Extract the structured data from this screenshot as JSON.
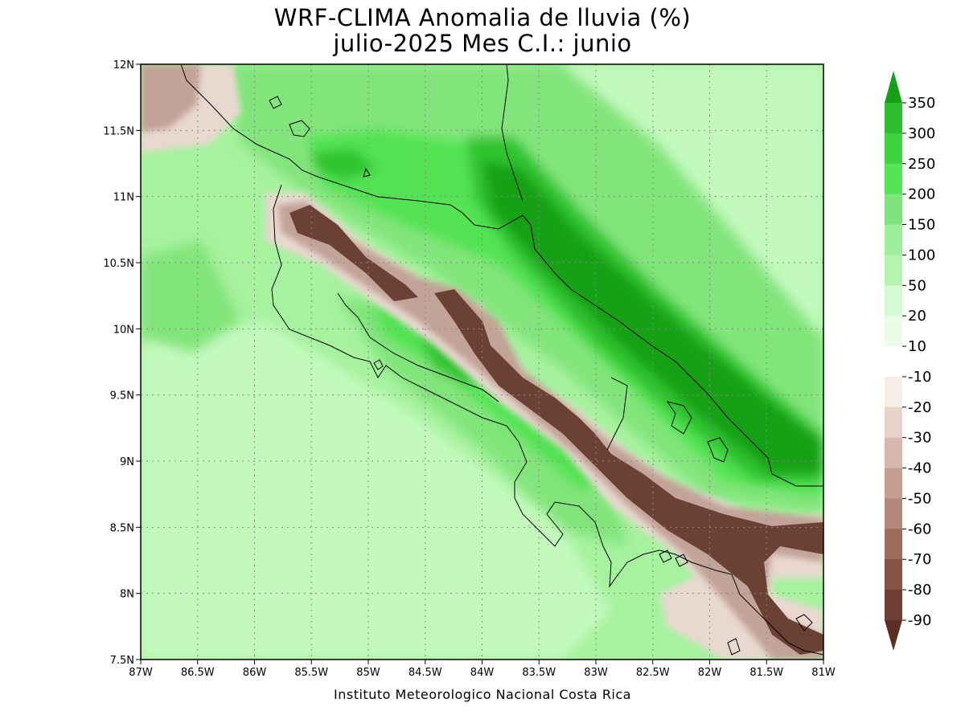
{
  "title": {
    "line1": "WRF-CLIMA Anomalia de lluvia (%)",
    "line2": "julio-2025 Mes C.I.: junio"
  },
  "credit": "Instituto Meteorologico Nacional Costa Rica",
  "map": {
    "lon_range": [
      -87,
      -81
    ],
    "lat_range": [
      7.5,
      12
    ],
    "lon_ticks": [
      {
        "value": -87,
        "label": "87W"
      },
      {
        "value": -86.5,
        "label": "86.5W"
      },
      {
        "value": -86,
        "label": "86W"
      },
      {
        "value": -85.5,
        "label": "85.5W"
      },
      {
        "value": -85,
        "label": "85W"
      },
      {
        "value": -84.5,
        "label": "84.5W"
      },
      {
        "value": -84,
        "label": "84W"
      },
      {
        "value": -83.5,
        "label": "83.5W"
      },
      {
        "value": -83,
        "label": "83W"
      },
      {
        "value": -82.5,
        "label": "82.5W"
      },
      {
        "value": -82,
        "label": "82W"
      },
      {
        "value": -81.5,
        "label": "81.5W"
      },
      {
        "value": -81,
        "label": "81W"
      }
    ],
    "lat_ticks": [
      {
        "value": 12,
        "label": "12N"
      },
      {
        "value": 11.5,
        "label": "11.5N"
      },
      {
        "value": 11,
        "label": "11N"
      },
      {
        "value": 10.5,
        "label": "10.5N"
      },
      {
        "value": 10,
        "label": "10N"
      },
      {
        "value": 9.5,
        "label": "9.5N"
      },
      {
        "value": 9,
        "label": "9N"
      },
      {
        "value": 8.5,
        "label": "8.5N"
      },
      {
        "value": 8,
        "label": "8N"
      },
      {
        "value": 7.5,
        "label": "7.5N"
      }
    ],
    "grid": true,
    "colors": {
      "base": "#a6f29e",
      "light": "#c3f9bd",
      "mid": "#82e57c",
      "bright": "#52e352",
      "strong": "#2fc42f",
      "dark": "#19a019",
      "dry_strong": "#6b4035",
      "dry_mid": "#c2a397",
      "dry_light": "#e8d8d0",
      "coast": "#000000",
      "grid": "#888888"
    }
  },
  "colorbar": {
    "labels": [
      "350",
      "300",
      "250",
      "200",
      "150",
      "100",
      "50",
      "20",
      "10",
      "-10",
      "-20",
      "-30",
      "-40",
      "-50",
      "-60",
      "-70",
      "-80",
      "-90"
    ],
    "colors": [
      "#16a016",
      "#2dbf2d",
      "#3fd43f",
      "#53e553",
      "#7ee47b",
      "#9fee9a",
      "#b6f3b1",
      "#d5f9d1",
      "#ebfde8",
      "#ffffff",
      "#f6ede5",
      "#e8d3c9",
      "#d7b8ac",
      "#c59f92",
      "#b3877a",
      "#9c6c5f",
      "#865446",
      "#6d3e31",
      "#5b2f24"
    ]
  }
}
